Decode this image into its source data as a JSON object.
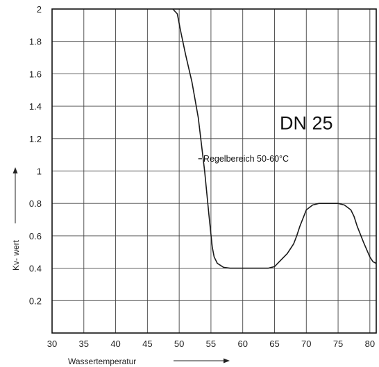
{
  "chart_data": {
    "type": "line",
    "title": "",
    "xlabel": "Wassertemperatur",
    "ylabel": "Kv- wert",
    "xlim": [
      30,
      81
    ],
    "ylim": [
      0,
      2
    ],
    "xticks": [
      30,
      35,
      40,
      45,
      50,
      55,
      60,
      65,
      70,
      75,
      80
    ],
    "xtick_labels": [
      "30",
      "35",
      "40",
      "45",
      "50",
      "55",
      "60",
      "65",
      "70",
      "75",
      "80"
    ],
    "yticks": [
      0.2,
      0.4,
      0.6,
      0.8,
      1,
      1.2,
      1.4,
      1.6,
      1.8,
      2
    ],
    "ytick_labels": [
      "0.2",
      "0.4",
      "0.6",
      "0.8",
      "1",
      "1.2",
      "1.4",
      "1.6",
      "1.8",
      "2"
    ],
    "grid": true,
    "series": [
      {
        "x": [
          49,
          49.7,
          50.3,
          51,
          52,
          53,
          54,
          54.7,
          55.2,
          55.5,
          56,
          57,
          58,
          60,
          62,
          64,
          65,
          66,
          67,
          68,
          68.5,
          69,
          70,
          71,
          72,
          74,
          75,
          76,
          77,
          77.5,
          78,
          79,
          80,
          80.5,
          81
        ],
        "y": [
          2.0,
          1.97,
          1.85,
          1.72,
          1.55,
          1.33,
          1.0,
          0.72,
          0.53,
          0.47,
          0.43,
          0.405,
          0.4,
          0.4,
          0.4,
          0.4,
          0.41,
          0.45,
          0.49,
          0.55,
          0.6,
          0.66,
          0.76,
          0.79,
          0.8,
          0.8,
          0.8,
          0.79,
          0.76,
          0.72,
          0.66,
          0.56,
          0.47,
          0.44,
          0.43
        ],
        "color": "#1a1a1a"
      }
    ],
    "annotations": [
      {
        "id": "dn",
        "text": "DN 25",
        "x": 70,
        "y": 1.3
      },
      {
        "id": "regel",
        "text": "Regelbereich  50-60°C",
        "x": 53.8,
        "y": 1.08
      }
    ]
  }
}
